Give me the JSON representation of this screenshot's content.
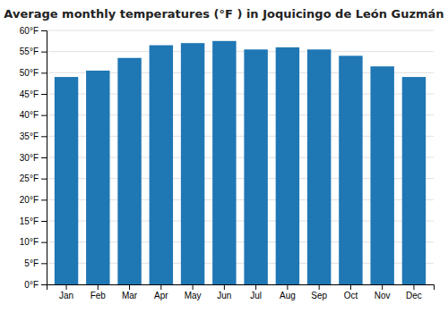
{
  "chart_data": {
    "type": "bar",
    "title": "Average monthly temperatures (°F ) in Joquicingo de León Guzmán",
    "categories": [
      "Jan",
      "Feb",
      "Mar",
      "Apr",
      "May",
      "Jun",
      "Jul",
      "Aug",
      "Sep",
      "Oct",
      "Nov",
      "Dec"
    ],
    "values": [
      49.0,
      50.5,
      53.5,
      56.5,
      57.0,
      57.5,
      55.5,
      56.0,
      55.5,
      54.0,
      51.5,
      49.0
    ],
    "ylim": [
      0,
      60
    ],
    "yticks": [
      {
        "value": 0,
        "label": "0°F"
      },
      {
        "value": 5,
        "label": "5°F"
      },
      {
        "value": 10,
        "label": "10°F"
      },
      {
        "value": 15,
        "label": "15°F"
      },
      {
        "value": 20,
        "label": "20°F"
      },
      {
        "value": 25,
        "label": "25°F"
      },
      {
        "value": 30,
        "label": "30°F"
      },
      {
        "value": 35,
        "label": "35°F"
      },
      {
        "value": 40,
        "label": "40°F"
      },
      {
        "value": 45,
        "label": "45°F"
      },
      {
        "value": 50,
        "label": "50°F"
      },
      {
        "value": 55,
        "label": "55°F"
      },
      {
        "value": 60,
        "label": "60°F"
      }
    ],
    "grid": true
  }
}
